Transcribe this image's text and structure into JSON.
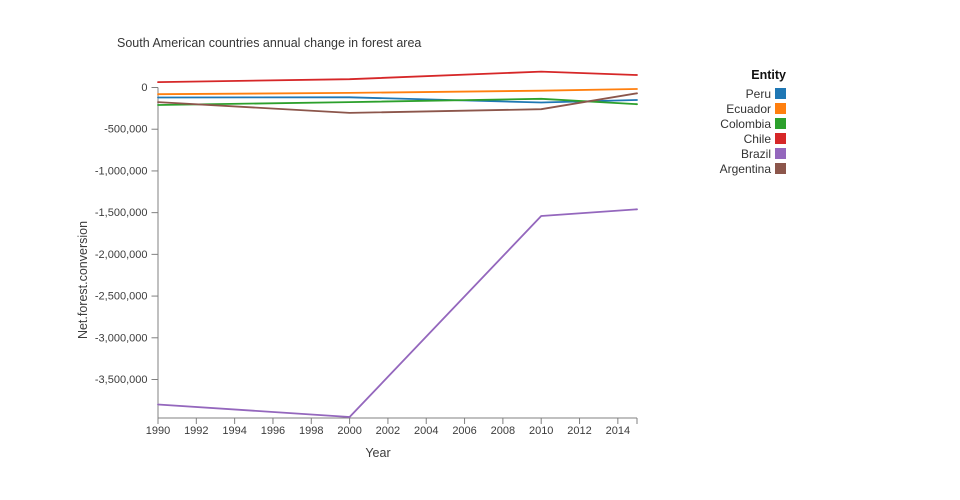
{
  "title": "South American countries annual change in forest area",
  "legend": {
    "title": "Entity",
    "items": [
      {
        "label": "Peru",
        "color": "#1f77b4"
      },
      {
        "label": "Ecuador",
        "color": "#ff7f0e"
      },
      {
        "label": "Colombia",
        "color": "#2ca02c"
      },
      {
        "label": "Chile",
        "color": "#d62728"
      },
      {
        "label": "Brazil",
        "color": "#9467bd"
      },
      {
        "label": "Argentina",
        "color": "#8c564b"
      }
    ]
  },
  "chart_data": {
    "type": "line",
    "title": "South American countries annual change in forest area",
    "xlabel": "Year",
    "ylabel": "Net.forest.conversion",
    "x": [
      1990,
      2000,
      2010,
      2015
    ],
    "series": [
      {
        "name": "Peru",
        "color": "#1f77b4",
        "values": [
          -120000,
          -118000,
          -180000,
          -150000
        ]
      },
      {
        "name": "Ecuador",
        "color": "#ff7f0e",
        "values": [
          -80000,
          -65000,
          -38000,
          -18000
        ]
      },
      {
        "name": "Colombia",
        "color": "#2ca02c",
        "values": [
          -210000,
          -175000,
          -135000,
          -200000
        ]
      },
      {
        "name": "Chile",
        "color": "#d62728",
        "values": [
          65000,
          100000,
          190000,
          150000
        ]
      },
      {
        "name": "Brazil",
        "color": "#9467bd",
        "values": [
          -3800000,
          -3950000,
          -1540000,
          -1460000
        ]
      },
      {
        "name": "Argentina",
        "color": "#8c564b",
        "values": [
          -175000,
          -305000,
          -260000,
          -70000
        ]
      }
    ],
    "xlim": [
      1990,
      2015
    ],
    "ylim": [
      -3980000,
      200000
    ],
    "x_ticks": [
      1990,
      1992,
      1994,
      1996,
      1998,
      2000,
      2002,
      2004,
      2006,
      2008,
      2010,
      2012,
      2014
    ],
    "x_end_tick": 2015,
    "y_ticks": [
      {
        "value": 0,
        "label": "0"
      },
      {
        "value": -500000,
        "label": "-500,000"
      },
      {
        "value": -1000000,
        "label": "-1,000,000"
      },
      {
        "value": -1500000,
        "label": "-1,500,000"
      },
      {
        "value": -2000000,
        "label": "-2,000,000"
      },
      {
        "value": -2500000,
        "label": "-2,500,000"
      },
      {
        "value": -3000000,
        "label": "-3,000,000"
      },
      {
        "value": -3500000,
        "label": "-3,500,000"
      }
    ],
    "grid": false,
    "legend_position": "right",
    "axis_color": "#808080"
  }
}
